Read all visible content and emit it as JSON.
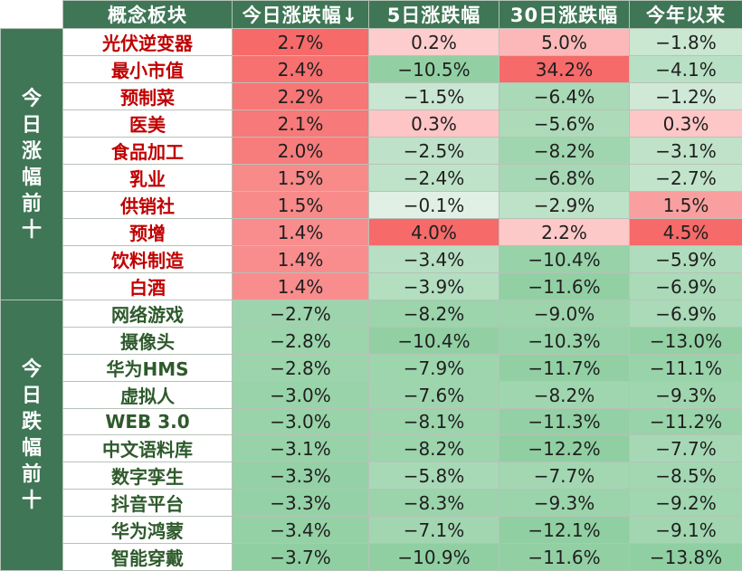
{
  "chart_data": {
    "type": "table",
    "columns": [
      "概念板块",
      "今日涨跌幅↓",
      "5日涨跌幅",
      "30日涨跌幅",
      "今年以来"
    ],
    "groups": [
      {
        "label": "今日涨幅前十",
        "direction": "up",
        "rows": [
          {
            "name": "光伏逆变器",
            "values": [
              2.7,
              0.2,
              5.0,
              -1.8
            ]
          },
          {
            "name": "最小市值",
            "values": [
              2.4,
              -10.5,
              34.2,
              -4.1
            ]
          },
          {
            "name": "预制菜",
            "values": [
              2.2,
              -1.5,
              -6.4,
              -1.2
            ]
          },
          {
            "name": "医美",
            "values": [
              2.1,
              0.3,
              -5.6,
              0.3
            ]
          },
          {
            "name": "食品加工",
            "values": [
              2.0,
              -2.5,
              -8.2,
              -3.1
            ]
          },
          {
            "name": "乳业",
            "values": [
              1.5,
              -2.4,
              -6.8,
              -2.7
            ]
          },
          {
            "name": "供销社",
            "values": [
              1.5,
              -0.1,
              -2.9,
              1.5
            ]
          },
          {
            "name": "预增",
            "values": [
              1.4,
              4.0,
              2.2,
              4.5
            ]
          },
          {
            "name": "饮料制造",
            "values": [
              1.4,
              -3.4,
              -10.4,
              -5.9
            ]
          },
          {
            "name": "白酒",
            "values": [
              1.4,
              -3.9,
              -11.6,
              -6.9
            ]
          }
        ]
      },
      {
        "label": "今日跌幅前十",
        "direction": "down",
        "rows": [
          {
            "name": "网络游戏",
            "values": [
              -2.7,
              -8.2,
              -9.0,
              -6.9
            ]
          },
          {
            "name": "摄像头",
            "values": [
              -2.8,
              -10.4,
              -10.3,
              -13.0
            ]
          },
          {
            "name": "华为HMS",
            "values": [
              -2.8,
              -7.9,
              -11.7,
              -11.1
            ]
          },
          {
            "name": "虚拟人",
            "values": [
              -3.0,
              -7.6,
              -8.2,
              -9.3
            ]
          },
          {
            "name": "WEB 3.0",
            "values": [
              -3.0,
              -8.1,
              -11.3,
              -11.2
            ]
          },
          {
            "name": "中文语料库",
            "values": [
              -3.1,
              -8.2,
              -12.2,
              -7.7
            ]
          },
          {
            "name": "数字孪生",
            "values": [
              -3.3,
              -5.8,
              -7.7,
              -8.5
            ]
          },
          {
            "name": "抖音平台",
            "values": [
              -3.3,
              -8.3,
              -9.3,
              -9.2
            ]
          },
          {
            "name": "华为鸿蒙",
            "values": [
              -3.4,
              -7.1,
              -12.1,
              -9.1
            ]
          },
          {
            "name": "智能穿戴",
            "values": [
              -3.7,
              -10.9,
              -11.6,
              -13.8
            ]
          }
        ]
      }
    ],
    "value_unit": "%",
    "colors": {
      "header_bg": "#3f7656",
      "header_text": "#ffffff",
      "up_name": "#c00000",
      "down_name": "#2e5a2c",
      "pos_max": "#f66a6a",
      "pos_min": "#ffe8e8",
      "neg_min": "#e9f4ec",
      "neg_max": "#90cfa2"
    }
  }
}
